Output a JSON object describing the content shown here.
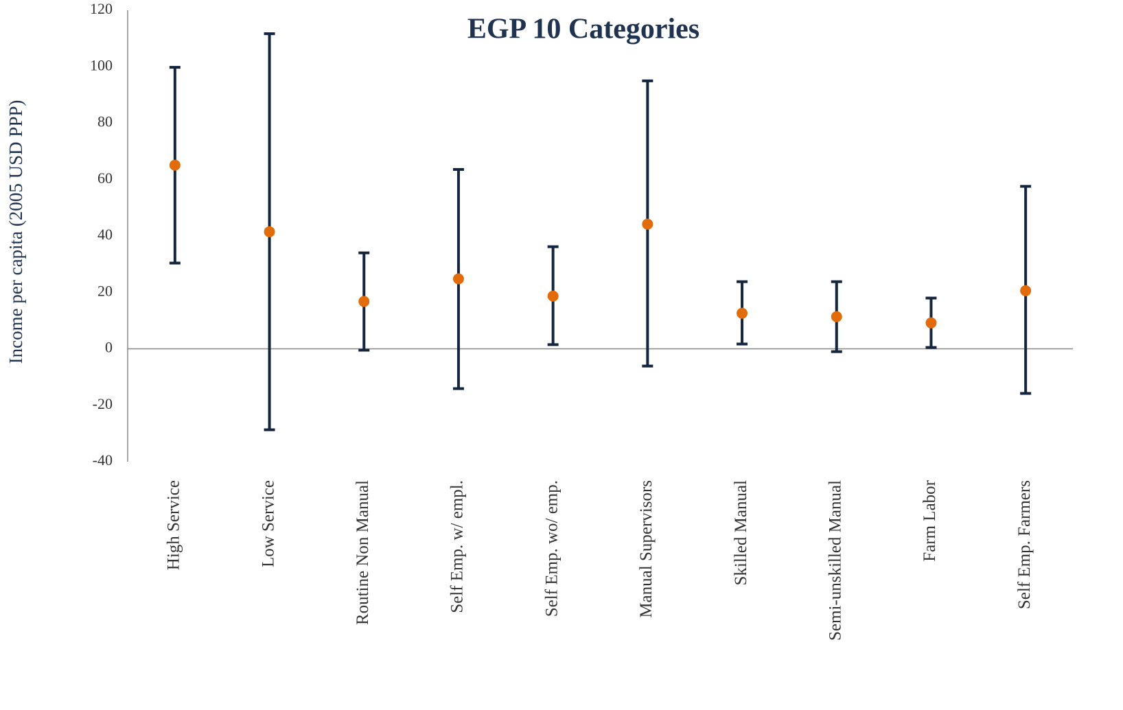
{
  "chart_data": {
    "type": "errorbar",
    "title": "EGP 10 Categories",
    "y_label": "Income per capita (2005 USD PPP)",
    "categories": [
      "High Service",
      "Low Service",
      "Routine Non Manual",
      "Self Emp. w/ empl.",
      "Self Emp. wo/ emp.",
      "Manual Supervisors",
      "Skilled Manual",
      "Semi-unskilled Manual",
      "Farm Labor",
      "Self Emp. Farmers"
    ],
    "values": [
      65.1,
      41.5,
      16.8,
      24.8,
      18.7,
      44.2,
      12.6,
      11.4,
      9.2,
      20.6
    ],
    "low": [
      30.4,
      -28.7,
      -0.5,
      -14.1,
      1.5,
      -6.1,
      1.7,
      -1.0,
      0.5,
      -15.8
    ],
    "high": [
      99.8,
      111.7,
      34.0,
      63.6,
      36.2,
      95.0,
      23.8,
      23.8,
      18.0,
      57.6
    ],
    "color": "#e36c0a",
    "bar_color": "#14253f",
    "ylim": [
      -40,
      120
    ],
    "yticks": [
      -40,
      -20,
      0,
      20,
      40,
      60,
      80,
      100,
      120
    ],
    "grid": false
  }
}
